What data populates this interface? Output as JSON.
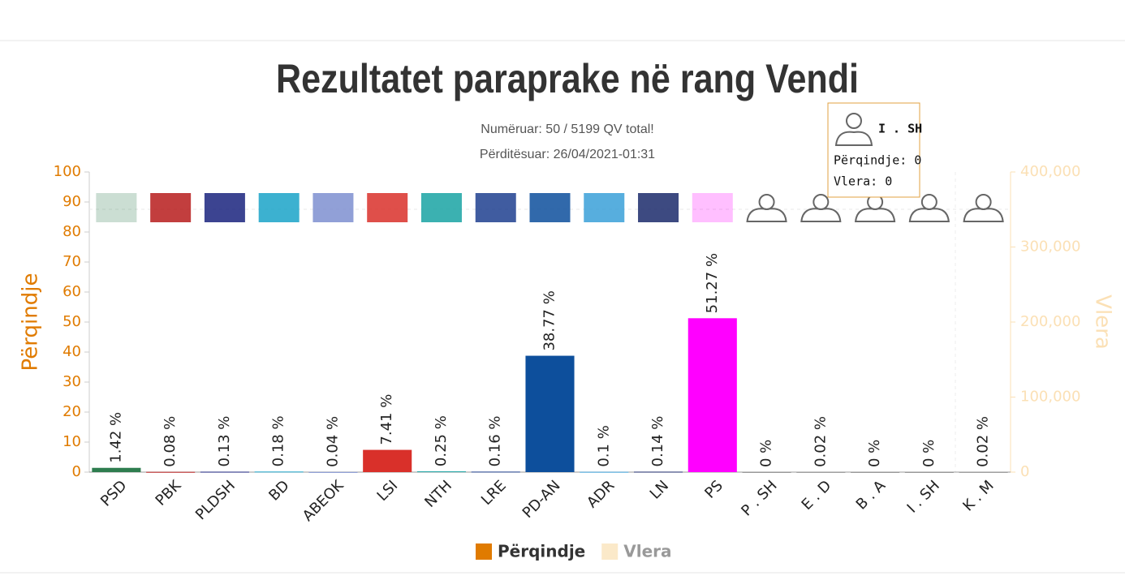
{
  "chart_data": {
    "type": "bar",
    "title": "Rezultatet paraprake në rang Vendi",
    "subtitle": [
      "Numëruar: 50 / 5199 QV total!",
      "Përditësuar: 26/04/2021-01:31"
    ],
    "categories": [
      "PSD",
      "PBK",
      "PLDSH",
      "BD",
      "ABEOK",
      "LSI",
      "NTH",
      "LRE",
      "PD-AN",
      "ADR",
      "LN",
      "PS",
      "P . SH",
      "E . D",
      "B . A",
      "I . SH",
      "K . M"
    ],
    "series": [
      {
        "name": "Përqindje",
        "color": "#e07b00",
        "values": [
          1.42,
          0.08,
          0.13,
          0.18,
          0.04,
          7.41,
          0.25,
          0.16,
          38.77,
          0.1,
          0.14,
          51.27,
          0,
          0.02,
          0,
          0,
          0.02
        ],
        "value_labels": [
          "1.42 %",
          "0.08 %",
          "0.13 %",
          "0.18 %",
          "0.04 %",
          "7.41 %",
          "0.25 %",
          "0.16 %",
          "38.77 %",
          "0.1 %",
          "0.14 %",
          "51.27 %",
          "0 %",
          "0.02 %",
          "0 %",
          "0 %",
          "0.02 %"
        ],
        "colors": [
          "#2e7d4f",
          "#b71c1c",
          "#1a237e",
          "#1aa3c8",
          "#7e8fd0",
          "#d9302a",
          "#19a3a3",
          "#1f3f8f",
          "#0d4f9c",
          "#3aa0d8",
          "#1b2a6b",
          "#ff00ff",
          "#999999",
          "#999999",
          "#999999",
          "#999999",
          "#999999"
        ]
      },
      {
        "name": "Vlera",
        "color": "#fbe9c9",
        "axis": "y2"
      }
    ],
    "y_label": "Përqindje",
    "y2_label": "Vlera",
    "ylim": [
      0,
      100
    ],
    "yticks": [
      0,
      10,
      20,
      30,
      40,
      50,
      60,
      70,
      80,
      90,
      100
    ],
    "y2lim": [
      0,
      400000
    ],
    "y2ticks": [
      0,
      {
        "value": 100000,
        "label": "100,000"
      },
      {
        "value": 200000,
        "label": "200,000"
      },
      {
        "value": 300000,
        "label": "300,000"
      },
      {
        "value": 400000,
        "label": "400,000"
      }
    ],
    "tooltip": {
      "title": "I . SH",
      "lines": [
        "Përqindje: 0",
        "Vlera: 0"
      ]
    }
  }
}
